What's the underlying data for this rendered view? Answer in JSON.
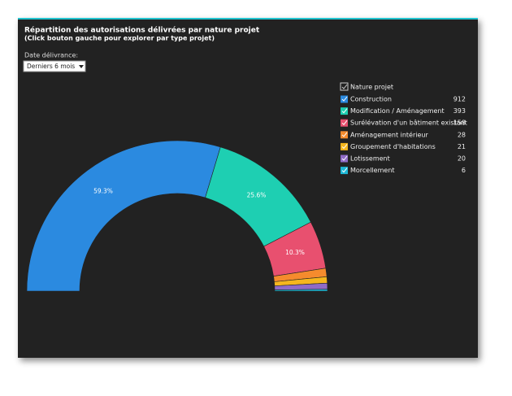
{
  "filter": {
    "label": "Date délivrance:",
    "value": "Derniers 6 mois"
  },
  "chart_data": {
    "type": "donut",
    "title": "Répartition des autorisations délivrées par nature projet",
    "subtitle": "(Click bouton gauche pour explorer par type projet)",
    "legend_title": "Nature projet",
    "categories": [
      "Construction",
      "Modification / Aménagement",
      "Surélévation d'un bâtiment existant",
      "Aménagement intérieur",
      "Groupement d'habitations",
      "Lotissement",
      "Morcellement"
    ],
    "values": [
      912,
      393,
      158,
      28,
      21,
      20,
      6
    ],
    "percent_labels": [
      "59.3%",
      "25.6%",
      "10.3%",
      null,
      null,
      null,
      null
    ],
    "colors": [
      "#2b8ae0",
      "#1ecfb2",
      "#e8506f",
      "#f58b2d",
      "#f5b61d",
      "#8f6bc6",
      "#1db8d6"
    ]
  }
}
